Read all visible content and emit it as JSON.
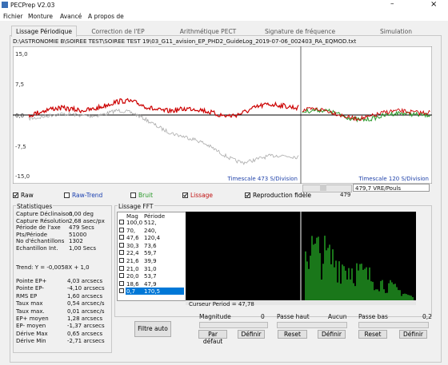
{
  "window": {
    "title": "PECPrep V2.03",
    "controls": [
      "–",
      "×"
    ]
  },
  "menu": [
    "Fichier",
    "Monture",
    "Avancé",
    "A propos de"
  ],
  "tabs": [
    "Lissage Périodique",
    "Correction de l'EP",
    "Arithmétique PECT",
    "Signature de fréquence",
    "Simulation"
  ],
  "file_path": "D:\\ASTRONOMIE B\\SOIREE TEST\\SOIREE TEST 19\\03_G11_avision_EP_PHD2_GuideLog_2019-07-06_002403_RA_EQMOD.txt",
  "plot": {
    "y_labels": [
      "15,0",
      "7,5",
      "0,0",
      "-7,5",
      "-15,0"
    ],
    "timescale_left": "Timescale 473 S/Division",
    "timescale_right": "Timescale 120 S/Division",
    "scroll_value": "479",
    "dropdown": "479,7 VRE/Pouls"
  },
  "checkboxes": [
    {
      "label": "Raw",
      "checked": true
    },
    {
      "label": "Raw-Trend",
      "checked": false
    },
    {
      "label": "Bruit",
      "checked": false
    },
    {
      "label": "Lissage",
      "checked": true
    },
    {
      "label": "Reproduction fidèle",
      "checked": true
    }
  ],
  "stats": {
    "title": "Statistiques",
    "capture": [
      [
        "Capture Déclinaison",
        "0,00 deg"
      ],
      [
        "Capture Résolution",
        "2,68 asec/px"
      ],
      [
        "Période de l'axe",
        "479 Secs"
      ],
      [
        "Pts/Période",
        "51000"
      ],
      [
        "No d'échantillons",
        "1302"
      ],
      [
        "Echantillon Int.",
        "1,00 Secs"
      ]
    ],
    "trend": "Trend: Y = -0,0058X + 1,0",
    "errors": [
      [
        "Pointe EP+",
        "4,03 arcsecs"
      ],
      [
        "Pointe EP-",
        "-4,10 arcsecs"
      ],
      [
        "RMS EP",
        "1,60 arcsecs"
      ],
      [
        "Taux max",
        "0,54 arcsec/s"
      ],
      [
        "Taux max.",
        "0,01 arcsec/s"
      ],
      [
        "EP+ moyen",
        "1,28 arcsecs"
      ],
      [
        "EP- moyen",
        "-1,37 arcsecs"
      ],
      [
        "Dérive Max",
        "0,65 arcsecs"
      ],
      [
        "Dérive Min",
        "-2,71 arcsecs"
      ]
    ]
  },
  "fft": {
    "title": "Lissage FFT",
    "headers": [
      "Mag",
      "Période"
    ],
    "rows": [
      [
        "100,0",
        "512,"
      ],
      [
        "70,",
        "240,"
      ],
      [
        "47,6",
        "120,4"
      ],
      [
        "30,3",
        "73,6"
      ],
      [
        "22,4",
        "59,7"
      ],
      [
        "21,6",
        "39,9"
      ],
      [
        "21,0",
        "31,0"
      ],
      [
        "20,0",
        "53,7"
      ],
      [
        "18,6",
        "47,9"
      ],
      [
        "0,7",
        "170,5"
      ]
    ],
    "cursor": "Curseur Period = 47,78"
  },
  "controls": {
    "auto_filter": "Filtre auto",
    "magnitude": {
      "label": "Magnitude",
      "value": "0",
      "default": "Par défaut",
      "set": "Définir"
    },
    "high_pass": {
      "label": "Passe haut",
      "value": "Aucun",
      "reset": "Reset",
      "set": "Définir"
    },
    "low_pass": {
      "label": "Passe bas",
      "value": "0,2",
      "reset": "Reset",
      "set": "Définir"
    }
  }
}
